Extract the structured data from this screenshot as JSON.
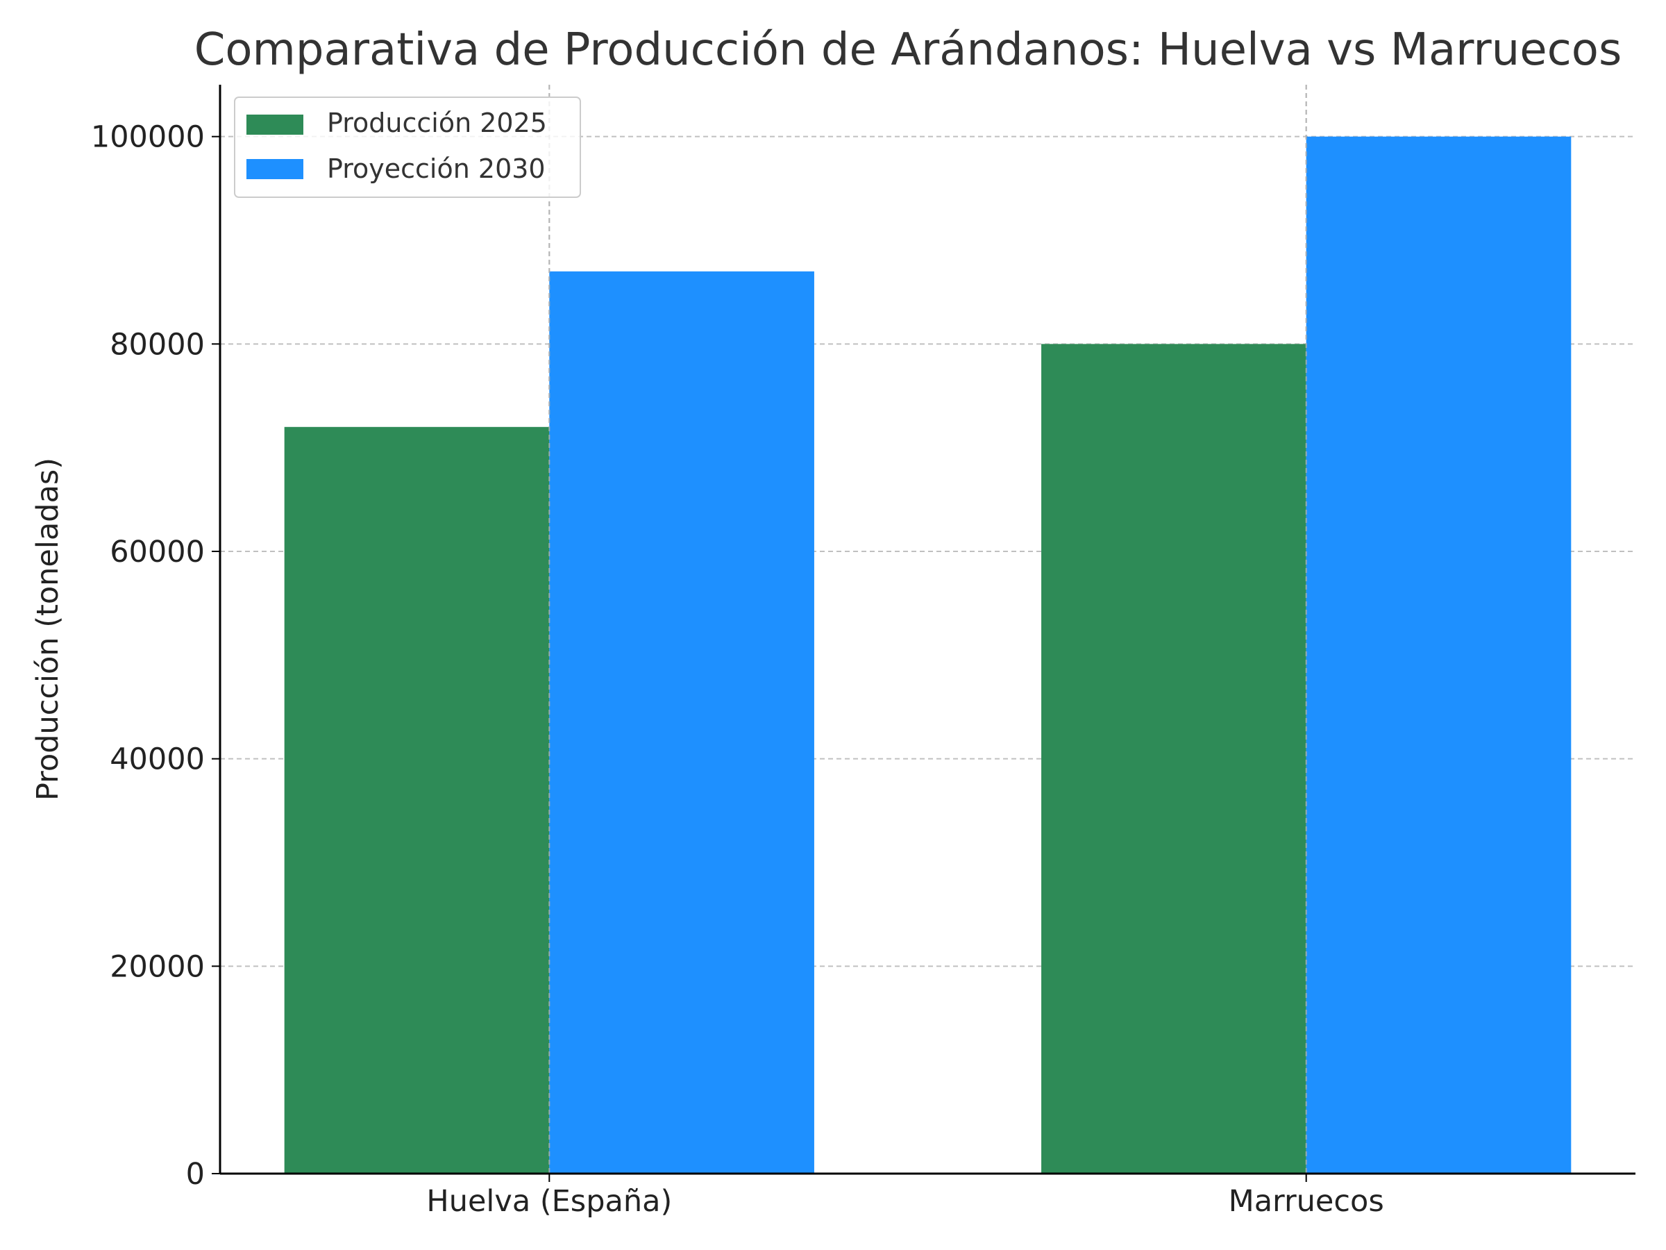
{
  "chart_data": {
    "type": "bar",
    "title": "Comparativa de Producción de Arándanos: Huelva vs Marruecos",
    "xlabel": "",
    "ylabel": "Producción (toneladas)",
    "categories": [
      "Huelva (España)",
      "Marruecos"
    ],
    "series": [
      {
        "name": "Producción 2025",
        "values": [
          72000,
          80000
        ],
        "color": "#2e8b57"
      },
      {
        "name": "Proyección 2030",
        "values": [
          87000,
          100000
        ],
        "color": "#1e90ff"
      }
    ],
    "ylim": [
      0,
      105000
    ],
    "yticks": [
      0,
      20000,
      40000,
      60000,
      80000,
      100000
    ],
    "grid": true,
    "legend_position": "top-left"
  }
}
